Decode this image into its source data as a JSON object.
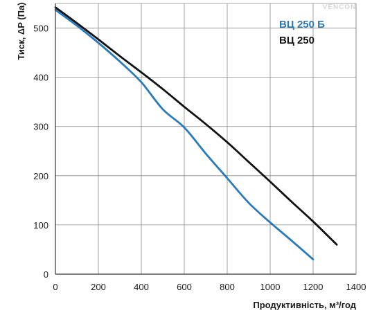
{
  "watermark": "VENCON",
  "chart_data": {
    "type": "line",
    "title": "",
    "xlabel": "Продуктивність, м³/год",
    "ylabel": "Тиск, ΔP (Па)",
    "xlim": [
      0,
      1400
    ],
    "ylim": [
      0,
      550
    ],
    "xticks": [
      0,
      200,
      400,
      600,
      800,
      1000,
      1200,
      1400
    ],
    "yticks": [
      0,
      100,
      200,
      300,
      400,
      500
    ],
    "grid": true,
    "legend_position": "top-right",
    "series": [
      {
        "name": "ВЦ 250 Б",
        "color": "#2a7ab8",
        "points": [
          [
            0,
            537
          ],
          [
            100,
            505
          ],
          [
            200,
            470
          ],
          [
            300,
            432
          ],
          [
            400,
            390
          ],
          [
            500,
            335
          ],
          [
            600,
            298
          ],
          [
            700,
            245
          ],
          [
            800,
            195
          ],
          [
            900,
            145
          ],
          [
            1000,
            105
          ],
          [
            1100,
            68
          ],
          [
            1200,
            30
          ]
        ]
      },
      {
        "name": "ВЦ 250",
        "color": "#111111",
        "points": [
          [
            0,
            542
          ],
          [
            100,
            510
          ],
          [
            200,
            477
          ],
          [
            300,
            443
          ],
          [
            400,
            410
          ],
          [
            500,
            376
          ],
          [
            600,
            340
          ],
          [
            700,
            305
          ],
          [
            800,
            268
          ],
          [
            900,
            228
          ],
          [
            1000,
            188
          ],
          [
            1100,
            147
          ],
          [
            1200,
            107
          ],
          [
            1310,
            60
          ]
        ]
      }
    ]
  }
}
